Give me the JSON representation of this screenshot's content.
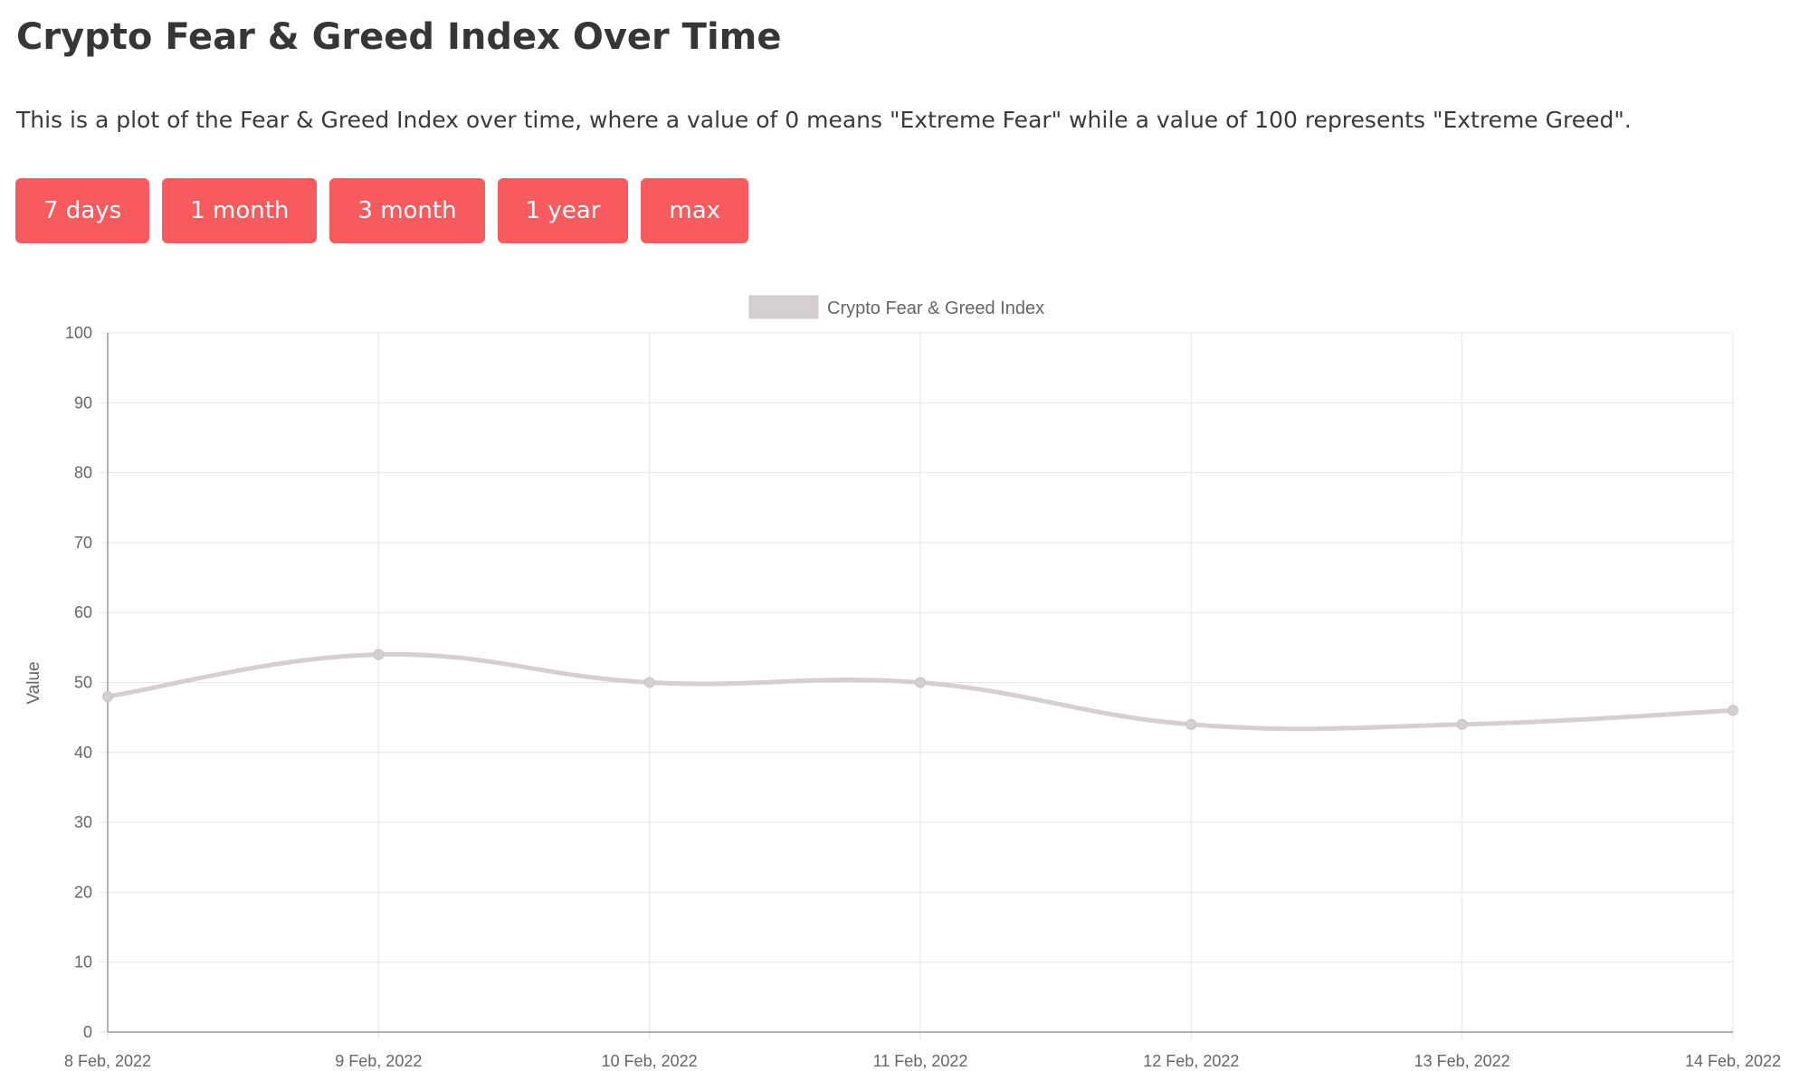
{
  "header": {
    "title": "Crypto Fear & Greed Index Over Time",
    "description": "This is a plot of the Fear & Greed Index over time, where a value of 0 means \"Extreme Fear\" while a value of 100 represents \"Extreme Greed\"."
  },
  "range_buttons": [
    {
      "label": "7 days"
    },
    {
      "label": "1 month"
    },
    {
      "label": "3 month"
    },
    {
      "label": "1 year"
    },
    {
      "label": "max"
    }
  ],
  "colors": {
    "button": "#f75b5e",
    "line": "#d6cfd2",
    "point": "#d6cfd2",
    "grid": "#e6e6e6",
    "axis": "#999999"
  },
  "chart_data": {
    "type": "line",
    "title": "",
    "xlabel": "",
    "ylabel": "Value",
    "ylim": [
      0,
      100
    ],
    "yticks": [
      0,
      10,
      20,
      30,
      40,
      50,
      60,
      70,
      80,
      90,
      100
    ],
    "grid": true,
    "legend_position": "top-center",
    "categories": [
      "8 Feb, 2022",
      "9 Feb, 2022",
      "10 Feb, 2022",
      "11 Feb, 2022",
      "12 Feb, 2022",
      "13 Feb, 2022",
      "14 Feb, 2022"
    ],
    "series": [
      {
        "name": "Crypto Fear & Greed Index",
        "values": [
          48,
          54,
          50,
          50,
          44,
          44,
          46
        ]
      }
    ]
  }
}
